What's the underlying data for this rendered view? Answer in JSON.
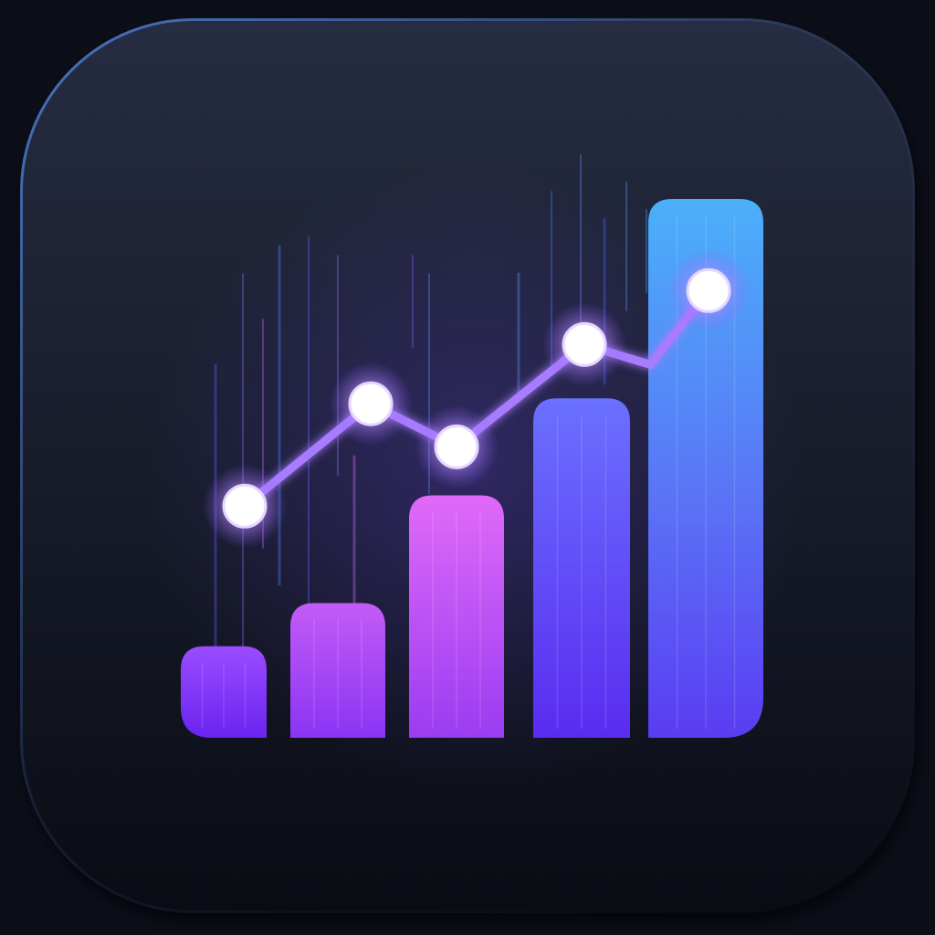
{
  "icon": {
    "name": "analytics-app-icon",
    "depicts": "bar-chart-with-trend-line-icon",
    "colors": {
      "page_background": "#0c0e18",
      "tile_top": "#262d42",
      "tile_bottom": "#0a0c14",
      "tile_rim": "#4a78c8",
      "bar_violet": "#7a2cff",
      "bar_magenta": "#d452f2",
      "bar_blue": "#4a55f2",
      "bar_cyan": "#45a8f8",
      "line": "#a87cff",
      "node_fill": "#ffffff",
      "node_glow": "#b88cff"
    },
    "bars": [
      {
        "name": "bar-1",
        "level": 0.17
      },
      {
        "name": "bar-2",
        "level": 0.25
      },
      {
        "name": "bar-3",
        "level": 0.45
      },
      {
        "name": "bar-4",
        "level": 0.63
      },
      {
        "name": "bar-5",
        "level": 1.0
      }
    ],
    "trend_points": [
      {
        "name": "trend-point-1",
        "level": 0.43
      },
      {
        "name": "trend-point-2",
        "level": 0.62
      },
      {
        "name": "trend-point-3",
        "level": 0.54
      },
      {
        "name": "trend-point-4",
        "level": 0.73
      },
      {
        "name": "trend-point-5",
        "level": 0.83
      }
    ]
  }
}
